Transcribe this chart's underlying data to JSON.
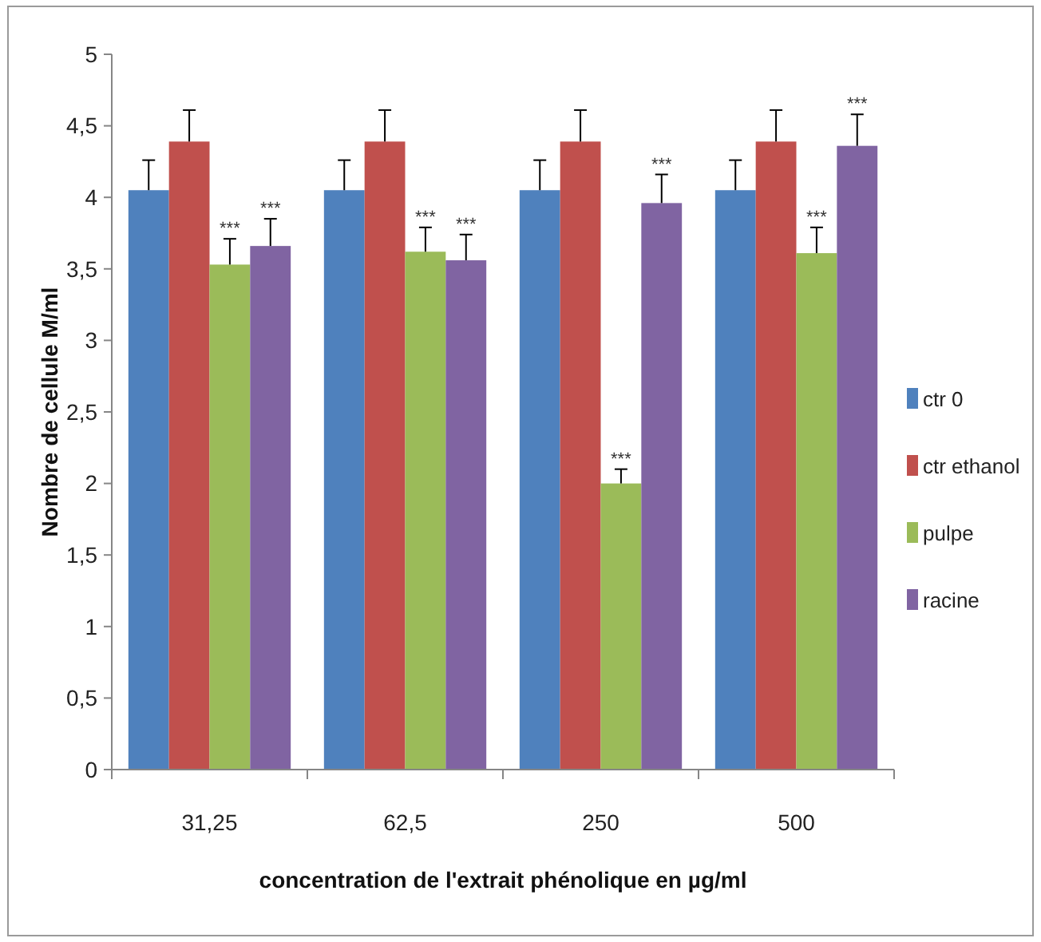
{
  "chart_data": {
    "type": "bar",
    "xlabel": "concentration de l'extrait phénolique en µg/ml",
    "ylabel": "Nombre de cellule M/ml",
    "categories": [
      "31,25",
      "62,5",
      "250",
      "500"
    ],
    "series": [
      {
        "name": "ctr 0",
        "color": "#4f81bd",
        "values": [
          4.05,
          4.05,
          4.05,
          4.05
        ],
        "errors": [
          [
            4.05,
            4.26
          ],
          [
            4.05,
            4.26
          ],
          [
            4.05,
            4.26
          ],
          [
            4.05,
            4.26
          ]
        ]
      },
      {
        "name": "ctr ethanol",
        "color": "#c0504d",
        "values": [
          4.39,
          4.39,
          4.39,
          4.39
        ],
        "errors": [
          [
            4.39,
            4.61
          ],
          [
            4.39,
            4.61
          ],
          [
            4.39,
            4.61
          ],
          [
            4.39,
            4.61
          ]
        ]
      },
      {
        "name": "pulpe",
        "color": "#9bbb59",
        "values": [
          3.53,
          3.62,
          2.0,
          3.61
        ],
        "errors": [
          [
            3.53,
            3.71
          ],
          [
            3.62,
            3.79
          ],
          [
            2.0,
            2.1
          ],
          [
            3.61,
            3.79
          ]
        ]
      },
      {
        "name": "racine",
        "color": "#8064a2",
        "values": [
          3.66,
          3.56,
          3.96,
          4.36
        ],
        "errors": [
          [
            3.66,
            3.85
          ],
          [
            3.56,
            3.74
          ],
          [
            3.96,
            4.16
          ],
          [
            4.36,
            4.58
          ]
        ]
      }
    ],
    "annotations": [
      {
        "text": "***",
        "x": "31,25",
        "y": 3.71
      },
      {
        "text": "***",
        "x": "31,25",
        "y": 3.85
      },
      {
        "text": "***",
        "x": "62,5",
        "y": 3.79
      },
      {
        "text": "***",
        "x": "62,5",
        "y": 3.74
      },
      {
        "text": "***",
        "x": "250",
        "y": 2.1
      },
      {
        "text": "***",
        "x": "250",
        "y": 4.16
      },
      {
        "text": "***",
        "x": "500",
        "y": 3.79
      },
      "***"
    ],
    "ylim": [
      0,
      5
    ],
    "yticks": [
      0,
      {
        "value": 0.5,
        "label": "0,5"
      },
      1,
      {
        "value": 1.5,
        "label": "1,5"
      },
      2,
      {
        "value": 2.5,
        "label": "2,5"
      },
      3,
      {
        "value": 3.5,
        "label": "3,5"
      },
      4,
      {
        "value": 4.5,
        "label": "4,5"
      },
      5
    ],
    "grid": false,
    "legend": "right"
  }
}
